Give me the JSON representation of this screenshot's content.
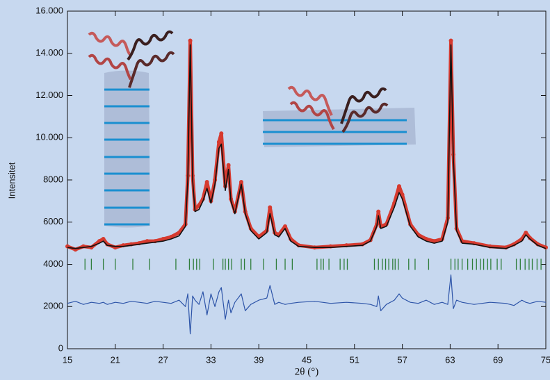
{
  "chart_data": {
    "type": "line",
    "xlabel": "2θ (°)",
    "ylabel": "Intensitet",
    "xlim": [
      15,
      75
    ],
    "xticks": [
      15,
      21,
      27,
      33,
      39,
      45,
      51,
      57,
      63,
      69,
      75
    ],
    "ylim": [
      0,
      16000
    ],
    "yticks": [
      0,
      2000,
      4000,
      6000,
      8000,
      {
        "value": 10000,
        "label": "10.000"
      },
      {
        "value": 12000,
        "label": "12.000"
      },
      {
        "value": 14000,
        "label": "14.000"
      },
      {
        "value": 16000,
        "label": "16.000"
      }
    ],
    "x": [
      15,
      16,
      17,
      18,
      19,
      19.5,
      20,
      21,
      22,
      23,
      24,
      25,
      26,
      27,
      28,
      29,
      29.8,
      30.1,
      30.4,
      30.7,
      31,
      31.5,
      32,
      32.5,
      33,
      33.5,
      34,
      34.3,
      34.8,
      35.2,
      35.5,
      36,
      36.8,
      37.3,
      38,
      39,
      40,
      40.4,
      41,
      41.5,
      42.3,
      43,
      44,
      46,
      48,
      50,
      52,
      53,
      53.8,
      54,
      54.3,
      55,
      56,
      56.6,
      57,
      58,
      59,
      60,
      61,
      62,
      62.7,
      63.1,
      63.4,
      63.8,
      64.5,
      66,
      68,
      70,
      71,
      72,
      72.5,
      73,
      74,
      75
    ],
    "series": [
      {
        "color": "#d63a2f",
        "values": [
          4850,
          4700,
          4850,
          4800,
          5100,
          5200,
          4950,
          4800,
          4900,
          4950,
          5000,
          5100,
          5100,
          5200,
          5300,
          5500,
          5900,
          8200,
          14600,
          8200,
          6600,
          6800,
          7100,
          7900,
          7000,
          8000,
          9800,
          10200,
          7700,
          8700,
          7100,
          6500,
          7900,
          6500,
          5700,
          5300,
          5600,
          6700,
          5500,
          5400,
          5800,
          5200,
          4900,
          4800,
          4850,
          4900,
          4950,
          5150,
          5900,
          6500,
          5800,
          5900,
          6900,
          7700,
          7300,
          5900,
          5400,
          5200,
          5100,
          5200,
          6200,
          14600,
          9200,
          5700,
          5100,
          5000,
          4850,
          4800,
          4950,
          5200,
          5500,
          5250,
          4950,
          4800
        ]
      },
      {
        "color": "#111111",
        "values": [
          4800,
          4750,
          4800,
          4850,
          5000,
          5100,
          4900,
          4850,
          4850,
          4900,
          4950,
          5000,
          5050,
          5100,
          5200,
          5350,
          5800,
          8000,
          14400,
          8000,
          6500,
          6600,
          7000,
          7600,
          6900,
          7800,
          9500,
          9700,
          7500,
          8500,
          7000,
          6400,
          7800,
          6400,
          5600,
          5200,
          5500,
          6400,
          5400,
          5300,
          5700,
          5100,
          4850,
          4800,
          4800,
          4850,
          4900,
          5100,
          5800,
          6300,
          5700,
          5800,
          6700,
          7400,
          7100,
          5800,
          5300,
          5100,
          5000,
          5100,
          6000,
          14400,
          9000,
          5600,
          5000,
          4950,
          4800,
          4750,
          4900,
          5100,
          5400,
          5200,
          4900,
          4750
        ]
      },
      {
        "color": "#2d54a8",
        "values": [
          2150,
          2250,
          2100,
          2200,
          2150,
          2200,
          2100,
          2200,
          2150,
          2250,
          2200,
          2150,
          2250,
          2200,
          2150,
          2300,
          2000,
          2600,
          700,
          2500,
          2300,
          2100,
          2700,
          1600,
          2600,
          2000,
          2700,
          2900,
          1400,
          2300,
          1700,
          2200,
          2600,
          1800,
          2100,
          2300,
          2400,
          3000,
          2100,
          2200,
          2100,
          2150,
          2200,
          2250,
          2150,
          2200,
          2150,
          2100,
          2000,
          2500,
          1800,
          2100,
          2300,
          2600,
          2400,
          2200,
          2150,
          2300,
          2100,
          2200,
          2100,
          3500,
          1900,
          2300,
          2200,
          2100,
          2200,
          2150,
          2050,
          2300,
          2200,
          2150,
          2250,
          2200
        ]
      }
    ],
    "reflection_level": 4000,
    "reflection_color": "#2e7d3a",
    "reflection_positions": [
      17.2,
      18,
      19.5,
      21,
      23.2,
      25.3,
      28.6,
      30.3,
      30.8,
      31.2,
      31.6,
      33.3,
      34.5,
      34.8,
      35.2,
      35.6,
      36.8,
      37.2,
      38,
      39.6,
      41.2,
      42.3,
      43.2,
      46.3,
      46.8,
      47.1,
      47.8,
      49.2,
      49.7,
      50.1,
      53.5,
      54,
      54.5,
      54.9,
      55.3,
      55.8,
      56.1,
      56.5,
      57.8,
      58.6,
      60.3,
      63.1,
      63.6,
      64,
      64.5,
      65.2,
      65.8,
      66.3,
      66.8,
      67.2,
      67.7,
      68.1,
      68.9,
      69.4,
      71.3,
      71.8,
      72.4,
      72.9,
      73.3,
      73.9,
      74.4
    ]
  }
}
